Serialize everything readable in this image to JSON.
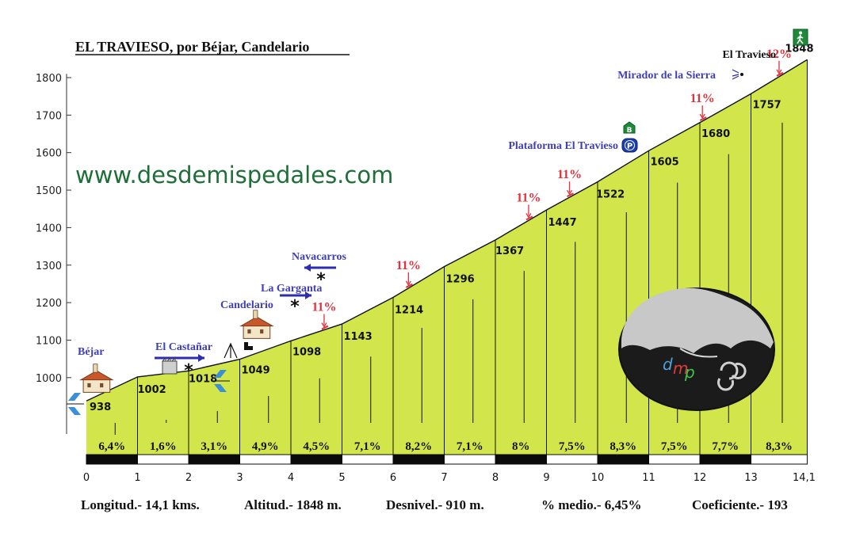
{
  "chart_data": {
    "type": "area",
    "title": "EL TRAVIESO, por Béjar, Candelario",
    "website": "www.desdemispedales.com",
    "xlabel": "",
    "ylabel": "",
    "xlim": [
      0,
      14.1
    ],
    "ylim": [
      820,
      1850
    ],
    "x_ticks": [
      {
        "value": 0,
        "label": "0"
      },
      {
        "value": 1,
        "label": "1"
      },
      {
        "value": 2,
        "label": "2"
      },
      {
        "value": 3,
        "label": "3"
      },
      {
        "value": 4,
        "label": "4"
      },
      {
        "value": 5,
        "label": "5"
      },
      {
        "value": 6,
        "label": "6"
      },
      {
        "value": 7,
        "label": "7"
      },
      {
        "value": 8,
        "label": "8"
      },
      {
        "value": 9,
        "label": "9"
      },
      {
        "value": 10,
        "label": "10"
      },
      {
        "value": 11,
        "label": "11"
      },
      {
        "value": 12,
        "label": "12"
      },
      {
        "value": 13,
        "label": "13"
      },
      {
        "value": 14.1,
        "label": "14,1"
      }
    ],
    "y_ticks": [
      1000,
      1100,
      1200,
      1300,
      1400,
      1500,
      1600,
      1700,
      1800
    ],
    "profile": [
      {
        "x": 0,
        "y": 938,
        "label": "938"
      },
      {
        "x": 1,
        "y": 1002,
        "label": "1002"
      },
      {
        "x": 2,
        "y": 1018,
        "label": "1018"
      },
      {
        "x": 3,
        "y": 1049,
        "label": "1049"
      },
      {
        "x": 4,
        "y": 1098,
        "label": "1098"
      },
      {
        "x": 5,
        "y": 1143,
        "label": "1143"
      },
      {
        "x": 6,
        "y": 1214,
        "label": "1214"
      },
      {
        "x": 7,
        "y": 1296,
        "label": "1296"
      },
      {
        "x": 8,
        "y": 1367,
        "label": "1367"
      },
      {
        "x": 9,
        "y": 1447,
        "label": "1447"
      },
      {
        "x": 10,
        "y": 1522,
        "label": "1522"
      },
      {
        "x": 11,
        "y": 1605,
        "label": "1605"
      },
      {
        "x": 12,
        "y": 1680,
        "label": "1680"
      },
      {
        "x": 13,
        "y": 1757,
        "label": "1757"
      },
      {
        "x": 14.1,
        "y": 1848,
        "label": "1848"
      }
    ],
    "gradients": [
      "6,4%",
      "1,6%",
      "3,1%",
      "4,9%",
      "4,5%",
      "7,1%",
      "8,2%",
      "7,1%",
      "8%",
      "7,5%",
      "8,3%",
      "7,5%",
      "7,7%",
      "8,3%"
    ],
    "steep_ramps": [
      {
        "x": 4.65,
        "label": "11%"
      },
      {
        "x": 6.3,
        "label": "11%"
      },
      {
        "x": 8.65,
        "label": "11%"
      },
      {
        "x": 9.45,
        "label": "11%"
      },
      {
        "x": 12.05,
        "label": "11%"
      },
      {
        "x": 13.55,
        "label": "12%"
      }
    ],
    "places": [
      {
        "name": "Béjar",
        "x": 0.2
      },
      {
        "name": "El Castañar",
        "x": 2.0
      },
      {
        "name": "Candelario",
        "x": 3.3
      },
      {
        "name": "La Garganta",
        "x": 4.1
      },
      {
        "name": "Navacarros",
        "x": 4.6
      },
      {
        "name": "Plataforma El Travieso",
        "x": 10.4
      },
      {
        "name": "Mirador de la Sierra",
        "x": 12.9
      },
      {
        "name": "El Travieso",
        "x": 14.1
      }
    ],
    "icons": [
      "bridge-icon",
      "house-icon",
      "factory-icon",
      "star-junction-icon",
      "camp-icon",
      "bar-icon",
      "parking-icon",
      "hiker-icon",
      "viewpoint-icon",
      "dmp-logo"
    ],
    "colors": {
      "fill": "#d2e54b",
      "title": "#111111",
      "places": "#3f3fb7",
      "steep": "#e0323c",
      "site": "#1e6e38"
    }
  },
  "stats": [
    {
      "label": "Longitud.-",
      "value": "14,1 kms."
    },
    {
      "label": "Altitud.-",
      "value": "1848 m."
    },
    {
      "label": "Desnivel.-",
      "value": "910 m."
    },
    {
      "label": "% medio.-",
      "value": "6,45%"
    },
    {
      "label": "Coeficiente.-",
      "value": "193"
    }
  ],
  "logo": {
    "letters": [
      "d",
      "m",
      "p"
    ]
  }
}
